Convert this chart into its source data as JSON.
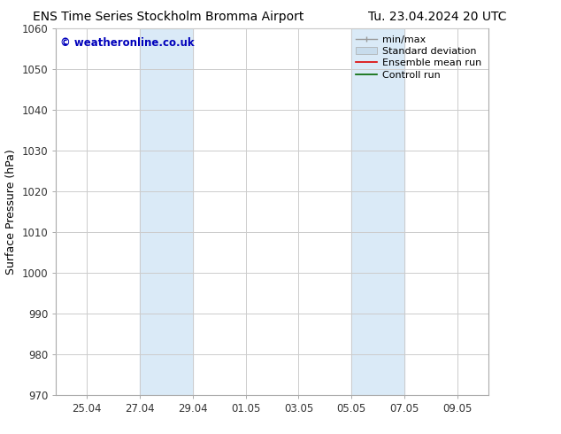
{
  "title_left": "ENS Time Series Stockholm Bromma Airport",
  "title_right": "Tu. 23.04.2024 20 UTC",
  "ylabel": "Surface Pressure (hPa)",
  "ylim": [
    970,
    1060
  ],
  "yticks": [
    970,
    980,
    990,
    1000,
    1010,
    1020,
    1030,
    1040,
    1050,
    1060
  ],
  "xtick_labels": [
    "25.04",
    "27.04",
    "29.04",
    "01.05",
    "03.05",
    "05.05",
    "07.05",
    "09.05"
  ],
  "xtick_positions": [
    1.167,
    3.167,
    5.167,
    7.167,
    9.167,
    11.167,
    13.167,
    15.167
  ],
  "xlim": [
    0,
    16.333
  ],
  "shaded_bands": [
    {
      "start": 3.167,
      "end": 5.167,
      "color": "#daeaf7"
    },
    {
      "start": 11.167,
      "end": 13.167,
      "color": "#daeaf7"
    }
  ],
  "watermark_text": "© weatheronline.co.uk",
  "watermark_color": "#0000bb",
  "background_color": "#ffffff",
  "grid_color": "#cccccc",
  "spine_color": "#aaaaaa",
  "tick_color": "#333333",
  "title_fontsize": 10,
  "tick_fontsize": 8.5,
  "ylabel_fontsize": 9,
  "watermark_fontsize": 8.5,
  "legend_fontsize": 8
}
